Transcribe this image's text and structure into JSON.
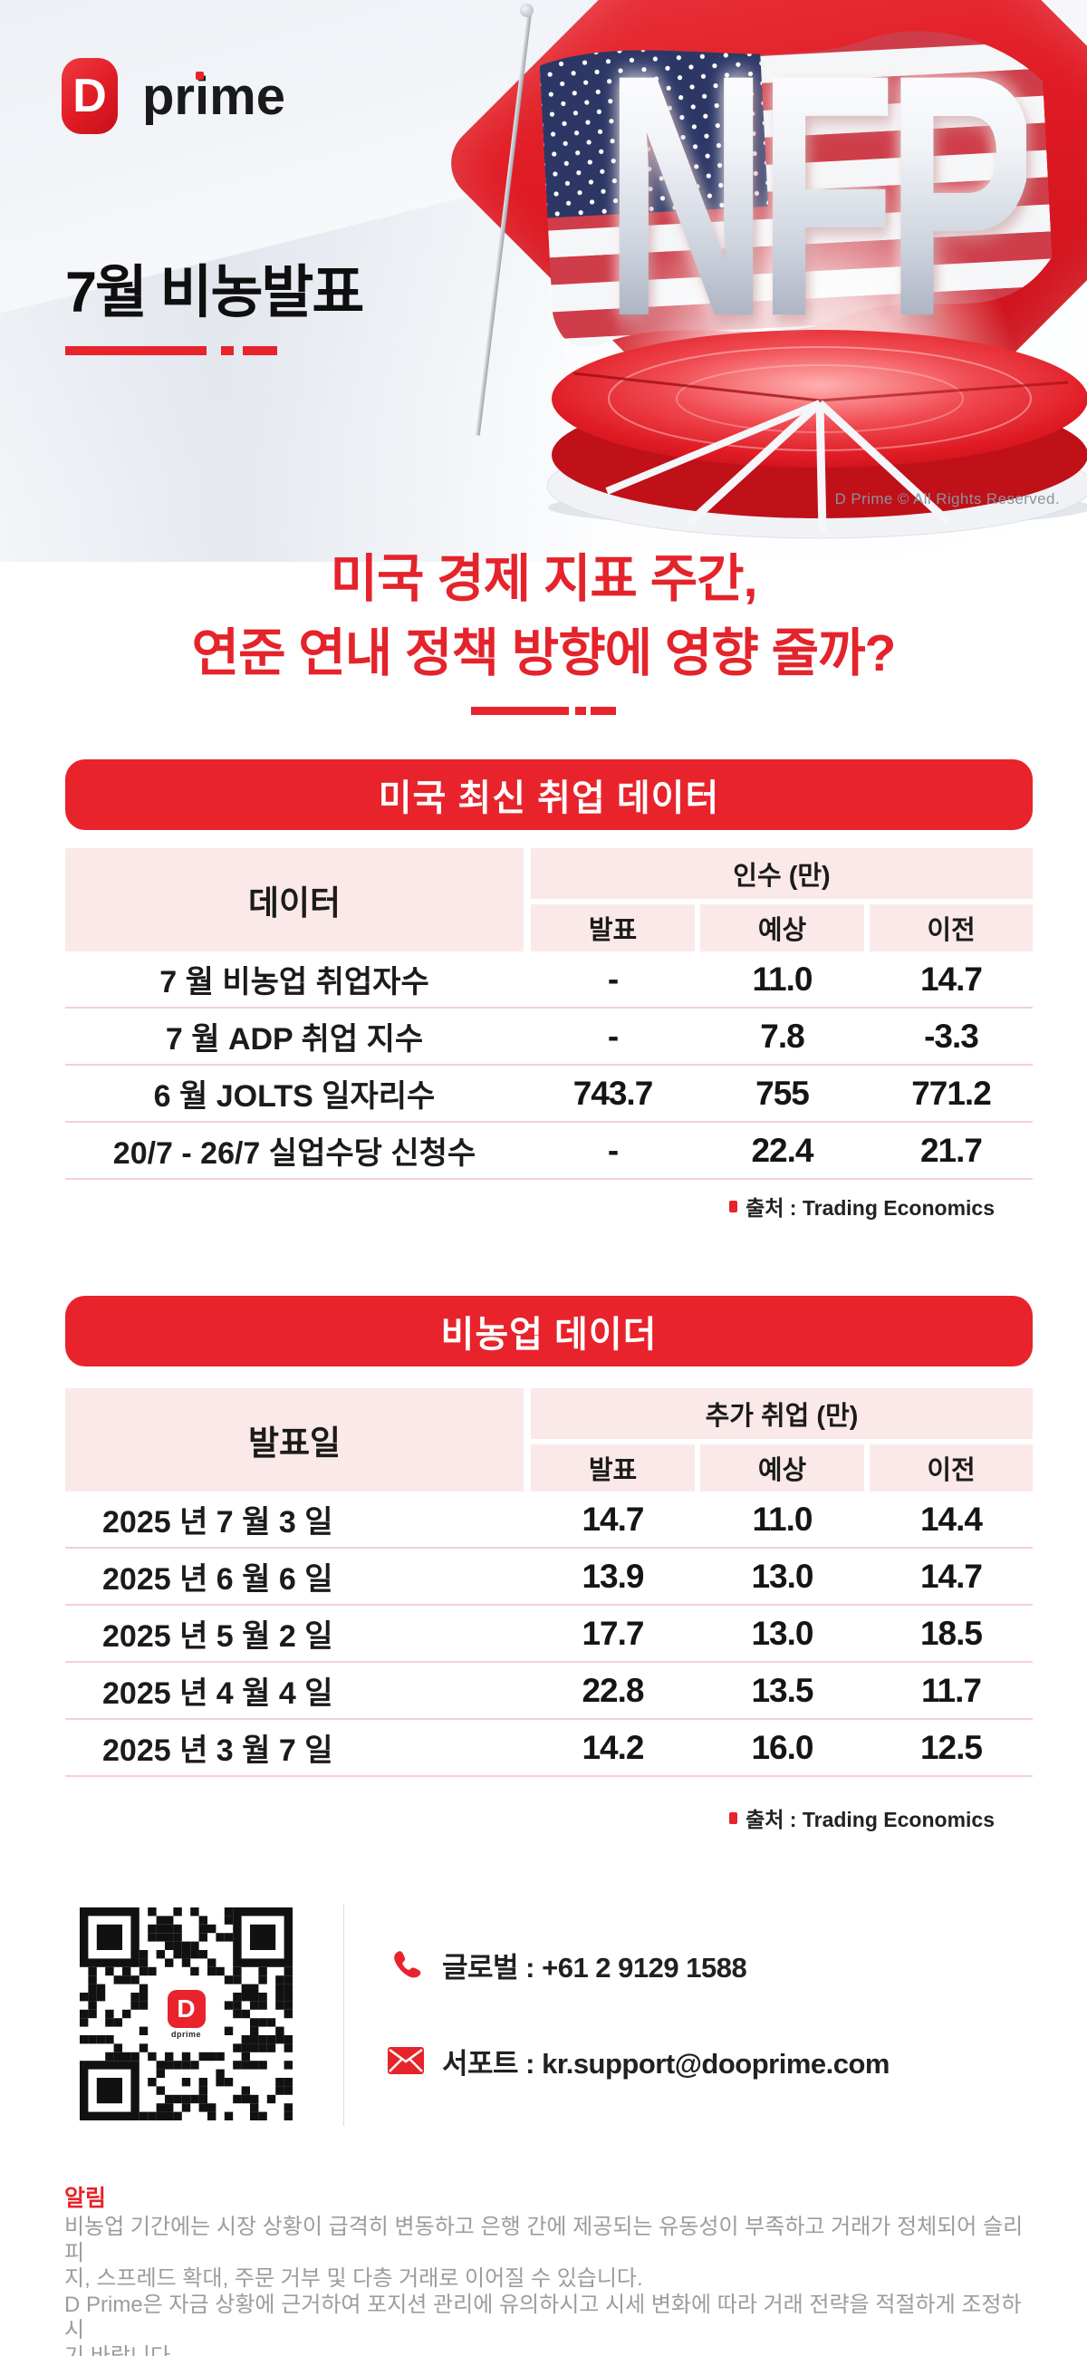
{
  "brand": {
    "logo_letter": "D",
    "logo_text": "prime",
    "logo_text_parts": [
      "pr",
      "i",
      "me"
    ],
    "copyright": "D Prime © All Rights Reserved."
  },
  "header": {
    "title": "7월 비농발표"
  },
  "hero": {
    "nfp": "NFP"
  },
  "headline": {
    "line1": "미국 경제 지표 주간,",
    "line2": "연준 연내 정책 방향에 영향 줄까?"
  },
  "table1": {
    "banner": "미국 최신 취업 데이터",
    "col_header": "데이터",
    "group_header": "인수 (만)",
    "sub_headers": [
      "발표",
      "예상",
      "이전"
    ],
    "rows": [
      {
        "label": "7 월 비농업 취업자수",
        "announced": "-",
        "expected": "11.0",
        "previous": "14.7"
      },
      {
        "label": "7 월 ADP 취업 지수",
        "announced": "-",
        "expected": "7.8",
        "previous": "-3.3"
      },
      {
        "label": "6 월 JOLTS 일자리수",
        "announced": "743.7",
        "expected": "755",
        "previous": "771.2"
      },
      {
        "label": "20/7 - 26/7 실업수당 신청수",
        "announced": "-",
        "expected": "22.4",
        "previous": "21.7"
      }
    ],
    "source": "출처 : Trading Economics"
  },
  "table2": {
    "banner": "비농업 데이더",
    "col_header": "발표일",
    "group_header": "추가 취업 (만)",
    "sub_headers": [
      "발표",
      "예상",
      "이전"
    ],
    "rows": [
      {
        "label": "2025 년 7 월 3 일",
        "announced": "14.7",
        "expected": "11.0",
        "previous": "14.4"
      },
      {
        "label": "2025 년 6 월 6 일",
        "announced": "13.9",
        "expected": "13.0",
        "previous": "14.7"
      },
      {
        "label": "2025 년 5 월 2 일",
        "announced": "17.7",
        "expected": "13.0",
        "previous": "18.5"
      },
      {
        "label": "2025 년 4 월 4 일",
        "announced": "22.8",
        "expected": "13.5",
        "previous": "11.7"
      },
      {
        "label": "2025 년 3 월 7 일",
        "announced": "14.2",
        "expected": "16.0",
        "previous": "12.5"
      }
    ],
    "source": "출처 : Trading Economics"
  },
  "contact": {
    "phone_label": "글로벌 : +61 2 9129 1588",
    "email_label": "서포트 : kr.support@dooprime.com"
  },
  "qr": {
    "center_letter": "D",
    "center_caption": "dprime"
  },
  "notice": {
    "title": "알림",
    "lines": [
      "비농업 기간에는 시장 상황이 급격히 변동하고 은행 간에 제공되는 유동성이 부족하고 거래가 정체되어 슬리피",
      "지, 스프레드 확대, 주문 거부 및 다층 거래로 이어질 수 있습니다.",
      "D Prime은 자금 상황에 근거하여 포지션 관리에 유의하시고 시세 변화에 따라 거래 전략을 적절하게 조정하시",
      "기 바랍니다."
    ]
  },
  "colors": {
    "brand_red": "#E8232B",
    "dark_red": "#C20D16",
    "pink_bg": "#FBE9E9",
    "pink_line": "#F5D0D0",
    "text_dark": "#1C1C1C",
    "text_gray": "#9C9C9C",
    "copyright_gray": "#8C929A"
  }
}
